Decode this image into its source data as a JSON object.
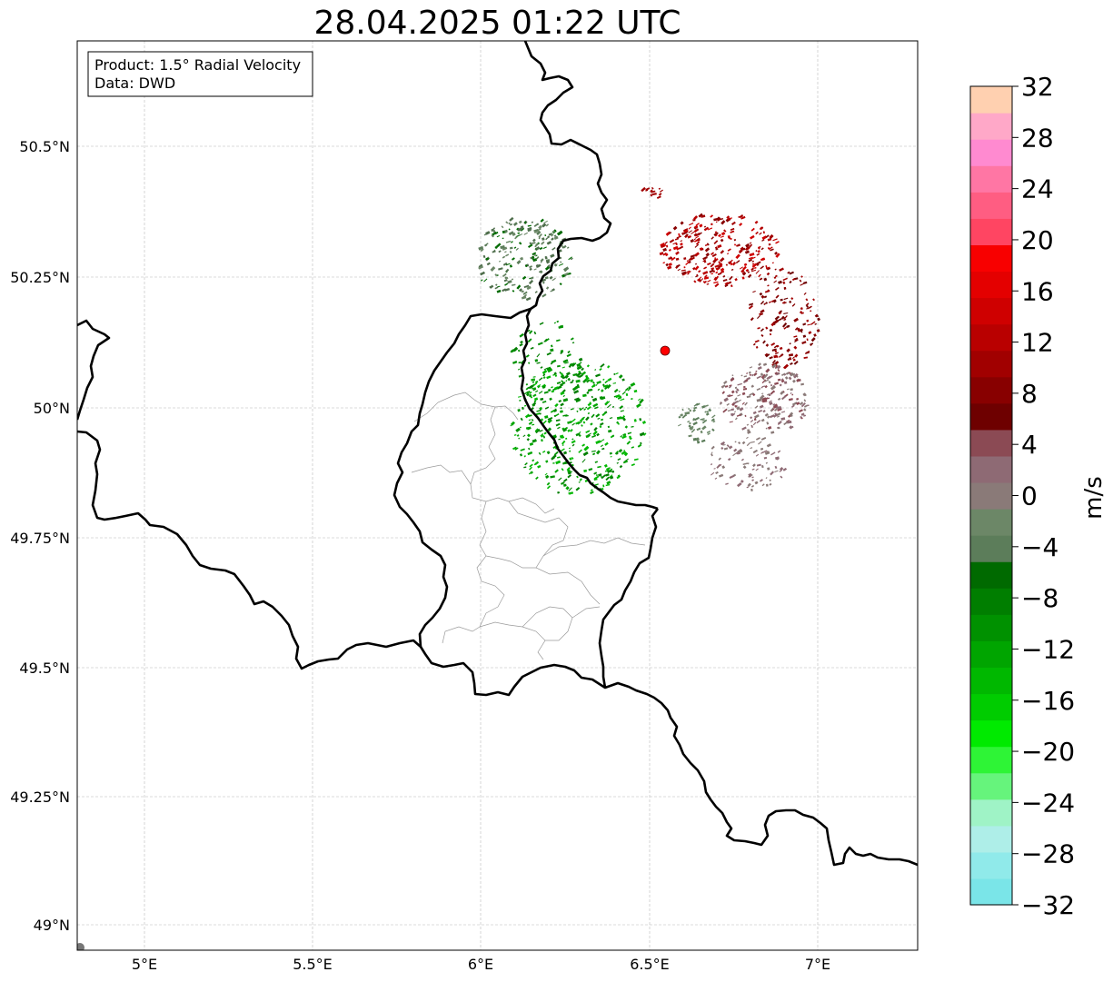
{
  "title": "28.04.2025 01:22 UTC",
  "info_box": {
    "product": "Product: 1.5° Radial Velocity",
    "data": "Data: DWD"
  },
  "axes": {
    "lon_ticks": [
      "5°E",
      "5.5°E",
      "6°E",
      "6.5°E",
      "7°E"
    ],
    "lat_ticks": [
      "50.5°N",
      "50.25°N",
      "50°N",
      "49.75°N",
      "49.5°N",
      "49.25°N",
      "49°N"
    ]
  },
  "radar_site": {
    "lon": 6.55,
    "lat": 50.11
  },
  "colorbar": {
    "label": "m/s",
    "min": -32,
    "max": 32,
    "tick_labels": [
      "32",
      "28",
      "24",
      "20",
      "16",
      "12",
      "8",
      "4",
      "0",
      "−4",
      "−8",
      "−12",
      "−16",
      "−20",
      "−24",
      "−28",
      "−32"
    ],
    "colors_bottom_to_top": [
      "#7ae5e8",
      "#90eaea",
      "#aeeee8",
      "#9ff3c6",
      "#66f47c",
      "#2ef436",
      "#00ea00",
      "#00cc00",
      "#00b800",
      "#00a500",
      "#009100",
      "#007e00",
      "#006a00",
      "#5c7d5a",
      "#6c8767",
      "#8a7a78",
      "#8e6a74",
      "#8b4a54",
      "#6e0000",
      "#880000",
      "#a10000",
      "#b90000",
      "#cf0000",
      "#e40000",
      "#f80000",
      "#ff4562",
      "#ff5d82",
      "#ff76a4",
      "#ff8ad0",
      "#ffa8c8",
      "#ffd0b0"
    ]
  }
}
